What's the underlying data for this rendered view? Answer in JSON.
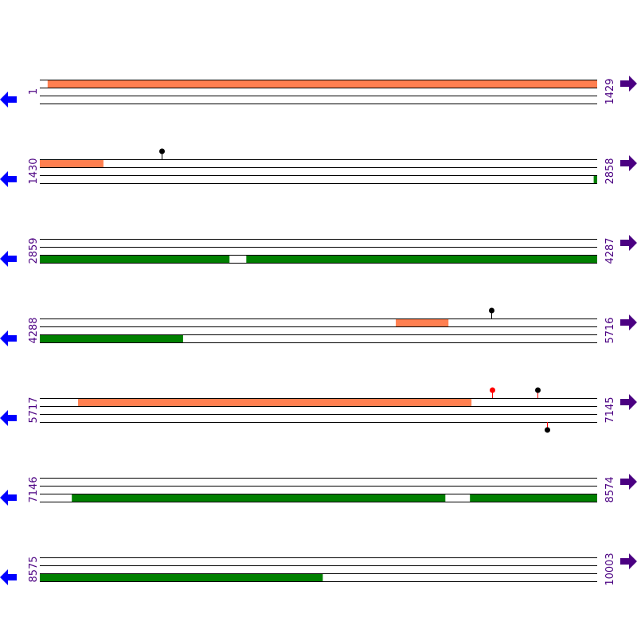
{
  "colors": {
    "forward_feature": "#ff7f50",
    "reverse_feature": "#008000",
    "label": "#4b0082",
    "left_arrow": "#0000ff",
    "right_arrow": "#4b0082",
    "line": "#000000"
  },
  "icons": {
    "left": "arrow-left-icon",
    "right": "arrow-right-icon"
  },
  "rows": [
    {
      "start": "1",
      "end": "1429",
      "features": [
        {
          "track": "forward",
          "from": 21,
          "to": 1429
        }
      ],
      "markers": []
    },
    {
      "start": "1430",
      "end": "2858",
      "features": [
        {
          "track": "forward",
          "from": 1430,
          "to": 1593
        },
        {
          "track": "reverse",
          "from": 2849,
          "to": 2858
        }
      ],
      "markers": [
        {
          "pos": 1742,
          "side": "top",
          "head": "#000000",
          "stem": "#000000"
        }
      ]
    },
    {
      "start": "2859",
      "end": "4287",
      "features": [
        {
          "track": "reverse",
          "from": 2859,
          "to": 3345
        },
        {
          "track": "reverse",
          "from": 3388,
          "to": 4287
        }
      ],
      "markers": []
    },
    {
      "start": "4288",
      "end": "5716",
      "features": [
        {
          "track": "forward",
          "from": 5200,
          "to": 5335
        },
        {
          "track": "reverse",
          "from": 4288,
          "to": 4655
        }
      ],
      "markers": [
        {
          "pos": 5445,
          "side": "top",
          "head": "#000000",
          "stem": "#000000"
        }
      ]
    },
    {
      "start": "5717",
      "end": "7145",
      "features": [
        {
          "track": "forward",
          "from": 5815,
          "to": 6823
        }
      ],
      "markers": [
        {
          "pos": 6876,
          "side": "top",
          "head": "#ff0000",
          "stem": "#ff0000"
        },
        {
          "pos": 6991,
          "side": "top",
          "head": "#000000",
          "stem": "#ff0000"
        },
        {
          "pos": 7017,
          "side": "bottom",
          "head": "#000000",
          "stem": "#ff0000"
        }
      ]
    },
    {
      "start": "7146",
      "end": "8574",
      "features": [
        {
          "track": "reverse",
          "from": 7228,
          "to": 8185
        },
        {
          "track": "reverse",
          "from": 8248,
          "to": 8574
        }
      ],
      "markers": []
    },
    {
      "start": "8575",
      "end": "10003",
      "features": [
        {
          "track": "reverse",
          "from": 8575,
          "to": 9300
        }
      ],
      "markers": []
    }
  ]
}
